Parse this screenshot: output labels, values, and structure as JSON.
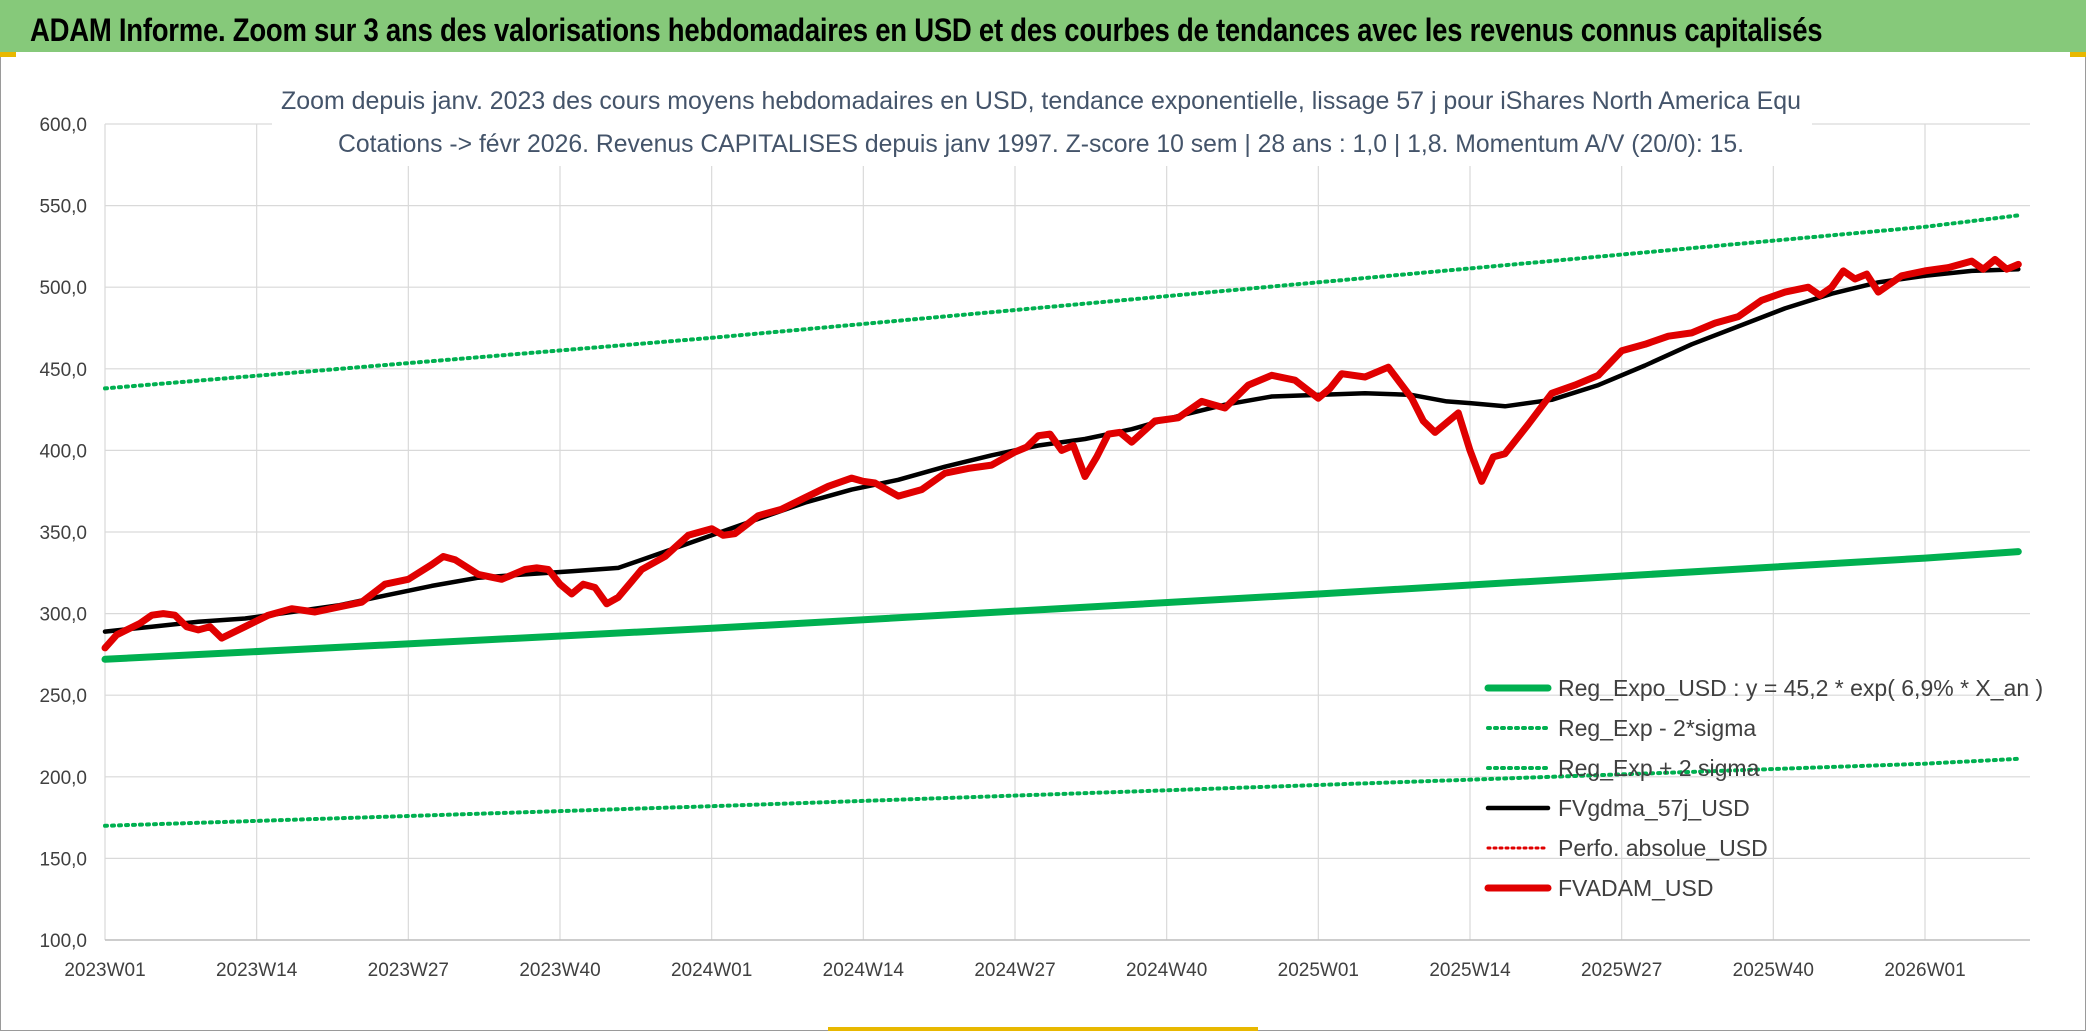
{
  "banner": {
    "title": "ADAM Informe. Zoom sur 3 ans des valorisations hebdomadaires en USD et des courbes de tendances avec les revenus connus capitalisés"
  },
  "colors": {
    "banner_bg": "#86c97a",
    "reg_expo": "#00b050",
    "fvgdma": "#000000",
    "fvadam": "#e00000",
    "perfo": "#e00000",
    "grid": "#d9d9d9",
    "accent": "#e8b800"
  },
  "chart_data": {
    "type": "line",
    "title_lines": [
      "Zoom depuis janv. 2023 des cours moyens hebdomadaires en USD, tendance exponentielle, lissage 57 j pour iShares North America Equ",
      "Cotations -> févr 2026. Revenus CAPITALISES depuis janv 1997. Z-score 10 sem | 28 ans : 1,0 | 1,8. Momentum A/V (20/0): 15."
    ],
    "ylim": [
      100,
      600
    ],
    "y_ticks": [
      "100,0",
      "150,0",
      "200,0",
      "250,0",
      "300,0",
      "350,0",
      "400,0",
      "450,0",
      "500,0",
      "550,0",
      "600,0"
    ],
    "x_range": [
      0,
      165
    ],
    "x_ticks": [
      {
        "x": 0,
        "label": "2023W01"
      },
      {
        "x": 13,
        "label": "2023W14"
      },
      {
        "x": 26,
        "label": "2023W27"
      },
      {
        "x": 39,
        "label": "2023W40"
      },
      {
        "x": 52,
        "label": "2024W01"
      },
      {
        "x": 65,
        "label": "2024W14"
      },
      {
        "x": 78,
        "label": "2024W27"
      },
      {
        "x": 91,
        "label": "2024W40"
      },
      {
        "x": 104,
        "label": "2025W01"
      },
      {
        "x": 117,
        "label": "2025W14"
      },
      {
        "x": 130,
        "label": "2025W27"
      },
      {
        "x": 143,
        "label": "2025W40"
      },
      {
        "x": 156,
        "label": "2026W01"
      }
    ],
    "series": [
      {
        "name": "Reg_Expo_USD : y = 45,2 * exp( 6,9% *  X_an )",
        "key": "reg_expo",
        "style": "solid-thick",
        "color": "#00b050",
        "x": [
          0,
          52,
          104,
          156,
          164
        ],
        "values": [
          272,
          291,
          312,
          334,
          338
        ]
      },
      {
        "name": "Reg_Exp - 2*sigma",
        "key": "reg_minus",
        "style": "dotted",
        "color": "#00b050",
        "x": [
          0,
          52,
          104,
          156,
          164
        ],
        "values": [
          170,
          182,
          195,
          208,
          211
        ]
      },
      {
        "name": "Reg_Exp + 2 sigma",
        "key": "reg_plus",
        "style": "dotted",
        "color": "#00b050",
        "x": [
          0,
          52,
          104,
          156,
          164
        ],
        "values": [
          438,
          469,
          503,
          537,
          544
        ]
      },
      {
        "name": "FVgdma_57j_USD",
        "key": "fvgdma",
        "style": "solid",
        "color": "#000000",
        "x": [
          0,
          4,
          8,
          12,
          16,
          20,
          24,
          28,
          32,
          36,
          40,
          44,
          48,
          52,
          56,
          60,
          64,
          68,
          72,
          76,
          80,
          84,
          88,
          92,
          96,
          100,
          104,
          108,
          112,
          115,
          117,
          120,
          124,
          128,
          132,
          136,
          140,
          144,
          148,
          152,
          156,
          160,
          164
        ],
        "values": [
          289,
          292,
          295,
          297,
          301,
          305,
          311,
          317,
          322,
          324,
          326,
          328,
          338,
          348,
          358,
          368,
          376,
          382,
          390,
          397,
          403,
          407,
          413,
          421,
          428,
          433,
          434,
          435,
          434,
          430,
          429,
          427,
          431,
          440,
          452,
          465,
          476,
          487,
          496,
          503,
          507,
          510,
          511
        ]
      },
      {
        "name": "Perfo. absolue_USD",
        "key": "perfo",
        "style": "dotted-red",
        "color": "#e00000",
        "x": [],
        "values": []
      },
      {
        "name": "FVADAM_USD",
        "key": "fvadam",
        "style": "solid-thick",
        "color": "#e00000",
        "x": [
          0,
          1,
          3,
          4,
          5,
          6,
          7,
          8,
          9,
          10,
          12,
          14,
          16,
          18,
          20,
          22,
          24,
          26,
          28,
          29,
          30,
          32,
          34,
          36,
          37,
          38,
          39,
          40,
          41,
          42,
          43,
          44,
          46,
          48,
          50,
          52,
          53,
          54,
          56,
          58,
          60,
          62,
          64,
          65,
          66,
          68,
          70,
          72,
          74,
          76,
          78,
          79,
          80,
          81,
          82,
          83,
          84,
          85,
          86,
          87,
          88,
          90,
          92,
          94,
          95,
          96,
          98,
          100,
          102,
          104,
          105,
          106,
          108,
          110,
          112,
          113,
          114,
          116,
          117,
          118,
          119,
          120,
          122,
          124,
          126,
          128,
          130,
          132,
          134,
          136,
          138,
          140,
          142,
          144,
          146,
          147,
          148,
          149,
          150,
          151,
          152,
          154,
          156,
          158,
          160,
          161,
          162,
          163,
          164
        ],
        "values": [
          279,
          287,
          294,
          299,
          300,
          299,
          292,
          290,
          292,
          285,
          292,
          299,
          303,
          301,
          304,
          307,
          318,
          321,
          330,
          335,
          333,
          324,
          321,
          327,
          328,
          327,
          318,
          312,
          318,
          316,
          306,
          310,
          327,
          335,
          348,
          352,
          348,
          349,
          360,
          364,
          371,
          378,
          383,
          381,
          380,
          372,
          376,
          386,
          389,
          391,
          399,
          402,
          409,
          410,
          400,
          403,
          384,
          396,
          410,
          411,
          405,
          418,
          420,
          430,
          428,
          426,
          440,
          446,
          443,
          432,
          438,
          447,
          445,
          451,
          432,
          418,
          411,
          423,
          400,
          381,
          396,
          398,
          416,
          435,
          440,
          446,
          461,
          465,
          470,
          472,
          478,
          482,
          492,
          497,
          500,
          495,
          500,
          510,
          505,
          508,
          497,
          507,
          510,
          512,
          516,
          511,
          517,
          511,
          514
        ]
      }
    ],
    "legend_position": "bottom-right"
  }
}
